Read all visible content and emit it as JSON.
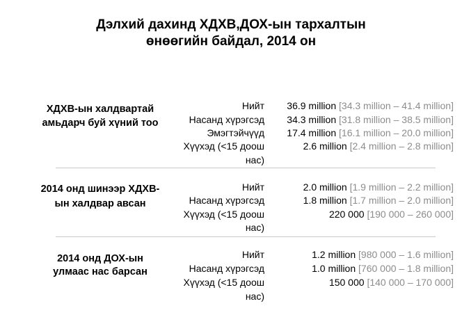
{
  "title_line1": "Дэлхий дахинд ХДХВ,ДОХ-ын тархалтын",
  "title_line2": "өнөөгийн байдал, 2014 он",
  "sections": [
    {
      "label_line1": "ХДХВ-ын халдвартай",
      "label_line2": "амьдарч буй хүний тоо",
      "rows": [
        {
          "label": "Нийт",
          "value": "36.9 million",
          "range": "[34.3 million – 41.4 million]"
        },
        {
          "label": "Насанд хүрэгсэд",
          "value": "34.3 million",
          "range": "[31.8 million – 38.5 million]"
        },
        {
          "label": "Эмэгтэйчүүд",
          "value": "17.4 million",
          "range": "[16.1 million – 20.0 million]"
        },
        {
          "label": "Хүүхэд  (<15 доош",
          "value": "2.6 million",
          "range": "[2.4 million – 2.8 million]"
        }
      ],
      "label_cont": "нас)"
    },
    {
      "label_line1": "2014 онд шинээр ХДХВ-",
      "label_line2": "ын халдвар авсан",
      "rows": [
        {
          "label": "Нийт",
          "value": "2.0 million",
          "range": "[1.9 million – 2.2 million]"
        },
        {
          "label": "Насанд хүрэгсэд",
          "value": "1.8 million",
          "range": "[1.7 million – 2.0 million]"
        },
        {
          "label": "Хүүхэд  (<15 доош",
          "value": "220 000",
          "range": "[190 000 – 260 000]"
        }
      ],
      "label_cont": "нас)"
    },
    {
      "label_line1": "2014 онд ДОХ-ын",
      "label_line2": "улмаас нас  барсан",
      "rows": [
        {
          "label": "Нийт",
          "value": "1.2 million",
          "range": "[980 000 – 1.6 million]"
        },
        {
          "label": "Насанд хүрэгсэд",
          "value": "1.0 million",
          "range": "[760 000 – 1.8 million]"
        },
        {
          "label": "Хүүхэд  (<15 доош",
          "value": "150 000",
          "range": "[140 000 – 170 000]"
        }
      ],
      "label_cont": "нас)"
    }
  ]
}
